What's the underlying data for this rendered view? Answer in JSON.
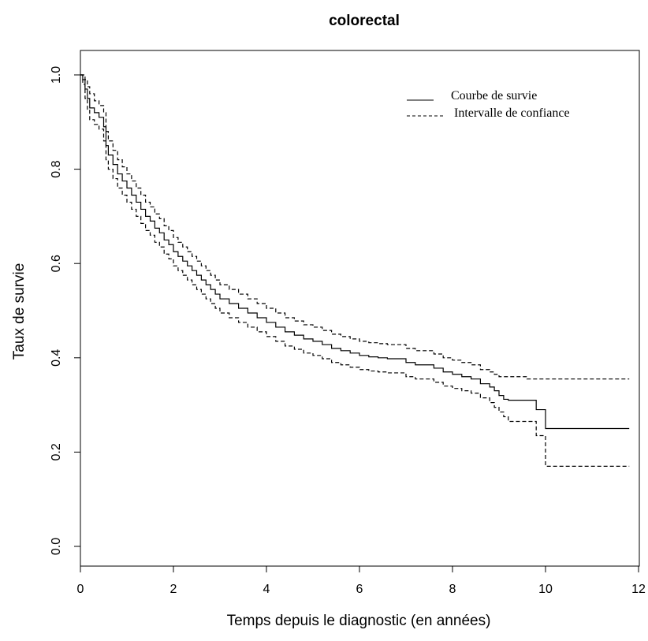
{
  "chart_data": {
    "type": "line",
    "title": "colorectal",
    "xlabel": "Temps depuis le diagnostic (en années)",
    "ylabel": "Taux de survie",
    "xlim": [
      0,
      12
    ],
    "ylim": [
      0,
      1
    ],
    "xticks": [
      0,
      2,
      4,
      6,
      8,
      10,
      12
    ],
    "yticks": [
      0.0,
      0.2,
      0.4,
      0.6,
      0.8,
      1.0
    ],
    "xtick_labels": [
      "0",
      "2",
      "4",
      "6",
      "8",
      "10",
      "12"
    ],
    "ytick_labels": [
      "0.0",
      "0.2",
      "0.4",
      "0.6",
      "0.8",
      "1.0"
    ],
    "grid": false,
    "legend_position": "top-right",
    "legend": [
      {
        "label": "Courbe de survie",
        "style": "solid"
      },
      {
        "label": "Intervalle de confiance",
        "style": "dashed"
      }
    ],
    "series": [
      {
        "style": "solid",
        "x": [
          0,
          0.05,
          0.1,
          0.15,
          0.2,
          0.3,
          0.4,
          0.5,
          0.55,
          0.6,
          0.7,
          0.8,
          0.9,
          1.0,
          1.1,
          1.2,
          1.3,
          1.4,
          1.5,
          1.6,
          1.7,
          1.8,
          1.9,
          2.0,
          2.1,
          2.2,
          2.3,
          2.4,
          2.5,
          2.6,
          2.7,
          2.8,
          2.9,
          3.0,
          3.2,
          3.4,
          3.6,
          3.8,
          4.0,
          4.2,
          4.4,
          4.6,
          4.8,
          5.0,
          5.2,
          5.4,
          5.6,
          5.8,
          6.0,
          6.2,
          6.4,
          6.6,
          7.0,
          7.2,
          7.6,
          7.8,
          8.0,
          8.2,
          8.4,
          8.6,
          8.8,
          8.9,
          9.0,
          9.1,
          9.2,
          9.6,
          9.8,
          10.0,
          11.8
        ],
        "y": [
          1.0,
          0.99,
          0.97,
          0.95,
          0.93,
          0.92,
          0.91,
          0.89,
          0.85,
          0.83,
          0.81,
          0.79,
          0.775,
          0.76,
          0.745,
          0.73,
          0.715,
          0.7,
          0.69,
          0.675,
          0.665,
          0.65,
          0.64,
          0.625,
          0.615,
          0.605,
          0.595,
          0.585,
          0.575,
          0.565,
          0.555,
          0.545,
          0.535,
          0.525,
          0.515,
          0.505,
          0.495,
          0.485,
          0.475,
          0.465,
          0.455,
          0.448,
          0.44,
          0.435,
          0.428,
          0.42,
          0.415,
          0.41,
          0.405,
          0.402,
          0.4,
          0.398,
          0.39,
          0.385,
          0.378,
          0.37,
          0.365,
          0.36,
          0.355,
          0.345,
          0.338,
          0.33,
          0.32,
          0.312,
          0.31,
          0.31,
          0.29,
          0.25,
          0.25
        ]
      },
      {
        "style": "dashed",
        "x": [
          0,
          0.05,
          0.1,
          0.15,
          0.2,
          0.3,
          0.4,
          0.5,
          0.55,
          0.6,
          0.7,
          0.8,
          0.9,
          1.0,
          1.1,
          1.2,
          1.3,
          1.4,
          1.5,
          1.6,
          1.7,
          1.8,
          1.9,
          2.0,
          2.1,
          2.2,
          2.3,
          2.4,
          2.5,
          2.6,
          2.7,
          2.8,
          2.9,
          3.0,
          3.2,
          3.4,
          3.6,
          3.8,
          4.0,
          4.2,
          4.4,
          4.6,
          4.8,
          5.0,
          5.2,
          5.4,
          5.6,
          5.8,
          6.0,
          6.2,
          6.4,
          6.6,
          7.0,
          7.2,
          7.6,
          7.8,
          8.0,
          8.2,
          8.4,
          8.6,
          8.8,
          8.9,
          9.0,
          9.1,
          9.2,
          9.6,
          9.8,
          10.0,
          11.8
        ],
        "y": [
          1.0,
          1.0,
          0.99,
          0.975,
          0.96,
          0.945,
          0.935,
          0.92,
          0.88,
          0.86,
          0.84,
          0.82,
          0.805,
          0.79,
          0.775,
          0.76,
          0.745,
          0.73,
          0.72,
          0.705,
          0.695,
          0.68,
          0.67,
          0.655,
          0.645,
          0.635,
          0.625,
          0.615,
          0.605,
          0.595,
          0.585,
          0.575,
          0.565,
          0.555,
          0.545,
          0.535,
          0.525,
          0.515,
          0.505,
          0.495,
          0.485,
          0.478,
          0.47,
          0.465,
          0.458,
          0.45,
          0.445,
          0.44,
          0.435,
          0.432,
          0.43,
          0.428,
          0.42,
          0.415,
          0.408,
          0.4,
          0.395,
          0.39,
          0.385,
          0.375,
          0.37,
          0.365,
          0.36,
          0.36,
          0.36,
          0.355,
          0.355,
          0.355,
          0.355
        ]
      },
      {
        "style": "dashed",
        "x": [
          0,
          0.05,
          0.1,
          0.15,
          0.2,
          0.3,
          0.4,
          0.5,
          0.55,
          0.6,
          0.7,
          0.8,
          0.9,
          1.0,
          1.1,
          1.2,
          1.3,
          1.4,
          1.5,
          1.6,
          1.7,
          1.8,
          1.9,
          2.0,
          2.1,
          2.2,
          2.3,
          2.4,
          2.5,
          2.6,
          2.7,
          2.8,
          2.9,
          3.0,
          3.2,
          3.4,
          3.6,
          3.8,
          4.0,
          4.2,
          4.4,
          4.6,
          4.8,
          5.0,
          5.2,
          5.4,
          5.6,
          5.8,
          6.0,
          6.2,
          6.4,
          6.6,
          7.0,
          7.2,
          7.6,
          7.8,
          8.0,
          8.2,
          8.4,
          8.6,
          8.8,
          8.9,
          9.0,
          9.1,
          9.2,
          9.6,
          9.8,
          10.0,
          11.8
        ],
        "y": [
          1.0,
          0.98,
          0.95,
          0.925,
          0.905,
          0.895,
          0.885,
          0.86,
          0.82,
          0.8,
          0.78,
          0.76,
          0.745,
          0.73,
          0.715,
          0.7,
          0.685,
          0.67,
          0.66,
          0.645,
          0.635,
          0.62,
          0.61,
          0.595,
          0.585,
          0.575,
          0.565,
          0.555,
          0.545,
          0.535,
          0.525,
          0.515,
          0.505,
          0.495,
          0.485,
          0.475,
          0.465,
          0.455,
          0.445,
          0.435,
          0.425,
          0.418,
          0.41,
          0.405,
          0.398,
          0.39,
          0.385,
          0.38,
          0.375,
          0.372,
          0.37,
          0.368,
          0.36,
          0.355,
          0.348,
          0.34,
          0.335,
          0.33,
          0.325,
          0.315,
          0.305,
          0.295,
          0.285,
          0.275,
          0.265,
          0.265,
          0.235,
          0.17,
          0.17
        ]
      }
    ]
  }
}
